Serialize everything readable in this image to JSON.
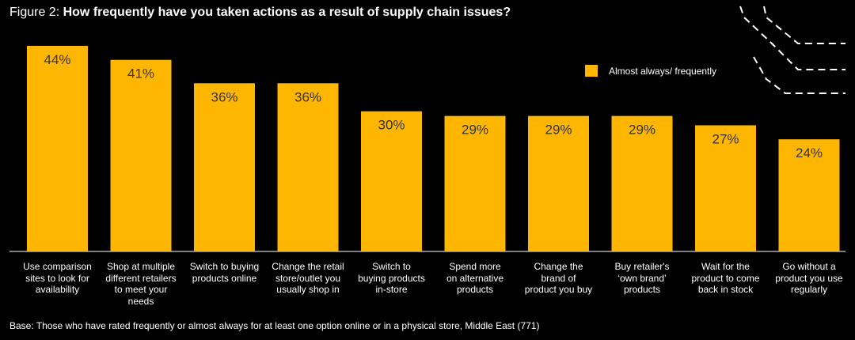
{
  "figure": {
    "prefix": "Figure 2: ",
    "title": "How frequently have you taken actions as a result of supply chain issues?"
  },
  "legend": {
    "label": "Almost always/ frequently"
  },
  "base_note": "Base: Those who have rated frequently or almost always for at least one option online or in a physical store, Middle East (771)",
  "colors": {
    "bar": "#FFB600",
    "background": "#000000",
    "text": "#FFFFFF",
    "value_label": "#333333"
  },
  "chart_data": {
    "type": "bar",
    "title": "How frequently have you taken actions as a result of supply chain issues?",
    "categories": [
      "Use comparison sites to look for availability",
      "Shop at multiple different retailers to meet your needs",
      "Switch to buying products online",
      "Change the retail store/outlet you usually shop in",
      "Switch to buying products in-store",
      "Spend more on alternative products",
      "Change the brand of product you buy",
      "Buy retailer's ‘own brand’ products",
      "Wait for the product to come back in stock",
      "Go without a product you use regularly"
    ],
    "category_lines": [
      [
        "Use comparison",
        "sites to look for",
        "availability"
      ],
      [
        "Shop at multiple",
        "different retailers",
        "to meet your",
        "needs"
      ],
      [
        "Switch to buying",
        "products online"
      ],
      [
        "Change the retail",
        "store/outlet you",
        "usually shop in"
      ],
      [
        "Switch to",
        "buying products",
        "in-store"
      ],
      [
        "Spend more",
        "on alternative",
        "products"
      ],
      [
        "Change the",
        "brand of",
        "product you buy"
      ],
      [
        "Buy retailer's",
        "‘own brand’",
        "products"
      ],
      [
        "Wait for the",
        "product to come",
        "back in stock"
      ],
      [
        "Go without a",
        "product you use",
        "regularly"
      ]
    ],
    "series": [
      {
        "name": "Almost always/ frequently",
        "values": [
          44,
          41,
          36,
          36,
          30,
          29,
          29,
          29,
          27,
          24
        ]
      }
    ],
    "value_labels": [
      "44%",
      "41%",
      "36%",
      "36%",
      "30%",
      "29%",
      "29%",
      "29%",
      "27%",
      "24%"
    ],
    "unit": "%",
    "ylim": [
      0,
      44
    ],
    "grid": false,
    "legend_position": "top-right"
  }
}
